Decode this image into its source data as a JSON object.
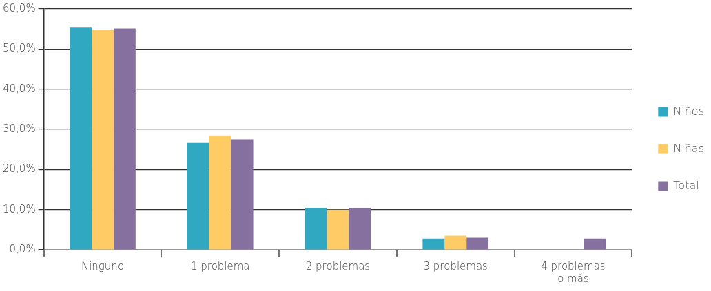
{
  "chart_data": {
    "type": "bar",
    "categories": [
      "Ninguno",
      "1 problema",
      "2 problemas",
      "3 problemas",
      "4 problemas o más"
    ],
    "series": [
      {
        "name": "Niños",
        "color": "#30a8c1",
        "values": [
          55.5,
          26.6,
          10.4,
          2.8,
          0
        ]
      },
      {
        "name": "Niñas",
        "color": "#fecb64",
        "values": [
          54.8,
          28.5,
          10.0,
          3.5,
          0
        ]
      },
      {
        "name": "Total",
        "color": "#85709f",
        "values": [
          55.1,
          27.5,
          10.4,
          3.0,
          2.8
        ]
      }
    ],
    "ylim": [
      0,
      60
    ],
    "yticks": [
      {
        "value": 0,
        "label": "0,0%"
      },
      {
        "value": 10,
        "label": "10,0%"
      },
      {
        "value": 20,
        "label": "20,0%"
      },
      {
        "value": 30,
        "label": "30,0%"
      },
      {
        "value": 40,
        "label": "40,0%"
      },
      {
        "value": 50,
        "label": "50,0%"
      },
      {
        "value": 60,
        "label": "60,0%"
      }
    ],
    "grid": "y",
    "legend": "right"
  }
}
